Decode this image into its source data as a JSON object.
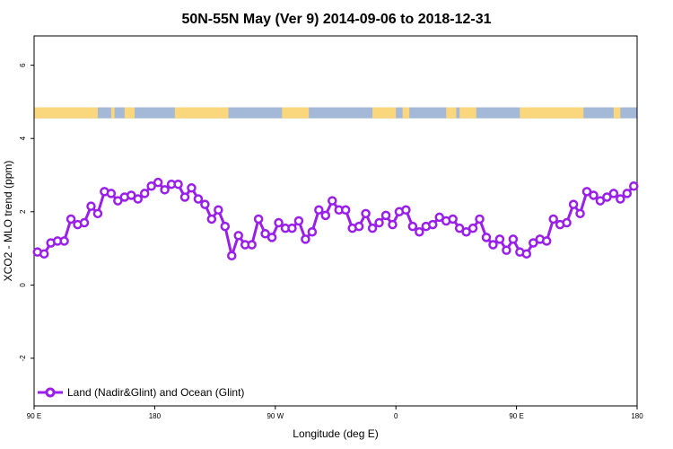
{
  "chart_data": {
    "type": "line",
    "title": "50N-55N May (Ver 9)   2014-09-06 to 2018-12-31",
    "xlabel": "Longitude (deg E)",
    "ylabel": "XCO2 - MLO trend (ppm)",
    "xticks": [
      "90 E",
      "180",
      "90 W",
      "0",
      "90 E",
      "180"
    ],
    "yticks": [
      "-2",
      "0",
      "2",
      "4",
      "6"
    ],
    "ytick_values": [
      -2,
      0,
      2,
      4,
      6
    ],
    "xlim": [
      90,
      450
    ],
    "ylim": [
      -3.3,
      6.8
    ],
    "grid": false,
    "legend_position": "bottom-left",
    "series_color": "#9a1fe8",
    "land_color": "#fad67d",
    "ocean_color": "#a4b8d8",
    "series": [
      {
        "name": "Land (Nadir&Glint) and Ocean (Glint)",
        "x": [
          92,
          96,
          100,
          104,
          108,
          112,
          116,
          120,
          124,
          128,
          132,
          136,
          140,
          144,
          148,
          152,
          156,
          160,
          164,
          168,
          172,
          176,
          180,
          184,
          188,
          192,
          196,
          200,
          204,
          208,
          212,
          216,
          220,
          224,
          228,
          232,
          236,
          240,
          244,
          248,
          252,
          256,
          260,
          264,
          268,
          272,
          276,
          280,
          284,
          288,
          292,
          296,
          300,
          304,
          308,
          312,
          316,
          320,
          324,
          328,
          332,
          336,
          340,
          344,
          348,
          352,
          356,
          360,
          364,
          368,
          372,
          376,
          380,
          384,
          388,
          392,
          396,
          400,
          404,
          408,
          412,
          416,
          420,
          424,
          428,
          432,
          436,
          440,
          444,
          448
        ],
        "y": [
          0.9,
          0.85,
          1.15,
          1.2,
          1.2,
          1.8,
          1.65,
          1.7,
          2.15,
          1.95,
          2.55,
          2.5,
          2.3,
          2.4,
          2.45,
          2.35,
          2.5,
          2.7,
          2.8,
          2.6,
          2.75,
          2.75,
          2.4,
          2.65,
          2.35,
          2.2,
          1.8,
          2.05,
          1.6,
          0.8,
          1.35,
          1.1,
          1.1,
          1.8,
          1.4,
          1.3,
          1.7,
          1.55,
          1.55,
          1.75,
          1.25,
          1.45,
          2.05,
          1.9,
          2.3,
          2.05,
          2.05,
          1.55,
          1.6,
          1.95,
          1.55,
          1.7,
          1.9,
          1.65,
          2.0,
          2.05,
          1.6,
          1.45,
          1.6,
          1.65,
          1.85,
          1.75,
          1.8,
          1.55,
          1.45,
          1.55,
          1.8,
          1.3,
          1.1,
          1.25,
          0.95,
          1.25,
          0.9,
          0.85,
          1.15,
          1.25,
          1.2,
          1.8,
          1.65,
          1.7,
          2.2,
          1.95,
          2.55,
          2.45,
          2.3,
          2.4,
          2.5,
          2.35,
          2.5,
          2.7
        ]
      }
    ],
    "land_ocean_strip": {
      "y_range": [
        4.55,
        4.85
      ],
      "land_segments": [
        [
          90,
          128
        ],
        [
          136,
          138
        ],
        [
          144,
          150
        ],
        [
          174,
          206
        ],
        [
          238,
          254
        ],
        [
          292,
          306
        ],
        [
          310,
          314
        ],
        [
          336,
          342
        ],
        [
          344,
          354
        ],
        [
          380,
          418
        ],
        [
          436,
          440
        ]
      ]
    }
  }
}
